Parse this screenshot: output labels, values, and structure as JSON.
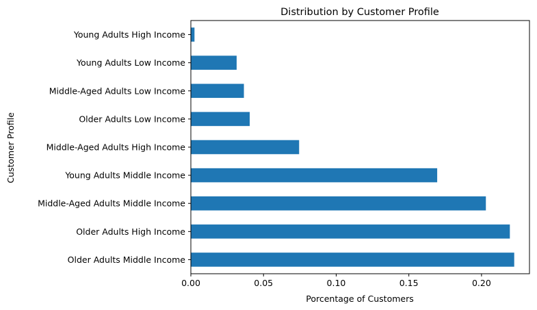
{
  "chart_data": {
    "type": "bar",
    "orientation": "horizontal",
    "title": "Distribution by Customer Profile",
    "xlabel": "Porcentage of Customers",
    "ylabel": "Customer Profile",
    "xlim": [
      0,
      0.233
    ],
    "xticks": [
      0.0,
      0.05,
      0.1,
      0.15,
      0.2
    ],
    "xtick_labels": [
      "0.00",
      "0.05",
      "0.10",
      "0.15",
      "0.20"
    ],
    "grid": false,
    "legend": "none",
    "bar_color": "#1f77b4",
    "categories": [
      "Young Adults High Income",
      "Young Adults Low Income",
      "Middle-Aged Adults Low Income",
      "Older Adults Low Income",
      "Middle-Aged Adults High Income",
      "Young Adults Middle Income",
      "Middle-Aged Adults Middle Income",
      "Older Adults High Income",
      "Older Adults Middle Income"
    ],
    "values": [
      0.0025,
      0.0315,
      0.0365,
      0.0405,
      0.0745,
      0.1695,
      0.203,
      0.2195,
      0.2225
    ]
  }
}
